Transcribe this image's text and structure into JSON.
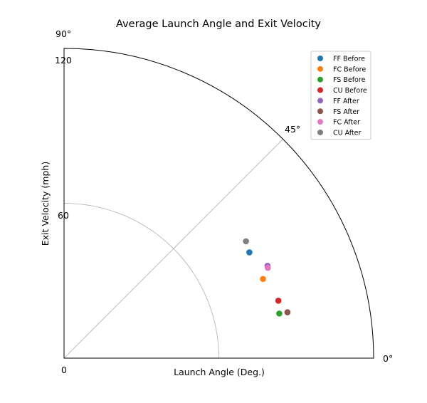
{
  "chart_data": {
    "type": "scatter",
    "projection": "polar-quarter",
    "title": "Average Launch Angle and Exit Velocity",
    "xlabel": "Launch Angle (Deg.)",
    "ylabel": "Exit Velocity (mph)",
    "theta_ticks": [
      "0°",
      "45°",
      "90°"
    ],
    "r_ticks": [
      "0",
      "60",
      "120"
    ],
    "rlim": [
      0,
      120
    ],
    "thetalim": [
      0,
      90
    ],
    "grid": true,
    "legend_position": "top-right",
    "series": [
      {
        "name": "FF Before",
        "color": "#1f77b4",
        "points": [
          {
            "theta": 29.7,
            "r": 82.7
          }
        ]
      },
      {
        "name": "FC Before",
        "color": "#ff7f0e",
        "points": [
          {
            "theta": 21.7,
            "r": 83.0
          }
        ]
      },
      {
        "name": "FS Before",
        "color": "#2ca02c",
        "points": [
          {
            "theta": 11.7,
            "r": 85.2
          }
        ]
      },
      {
        "name": "CU Before",
        "color": "#d62728",
        "points": [
          {
            "theta": 15.0,
            "r": 86.0
          }
        ]
      },
      {
        "name": "FF After",
        "color": "#9467bd",
        "points": [
          {
            "theta": 24.4,
            "r": 86.6
          }
        ]
      },
      {
        "name": "FS After",
        "color": "#8c564b",
        "points": [
          {
            "theta": 11.6,
            "r": 88.4
          }
        ]
      },
      {
        "name": "FC After",
        "color": "#e377c2",
        "points": [
          {
            "theta": 23.9,
            "r": 86.4
          }
        ]
      },
      {
        "name": "CU After",
        "color": "#7f7f7f",
        "points": [
          {
            "theta": 32.7,
            "r": 83.8
          }
        ]
      }
    ]
  }
}
